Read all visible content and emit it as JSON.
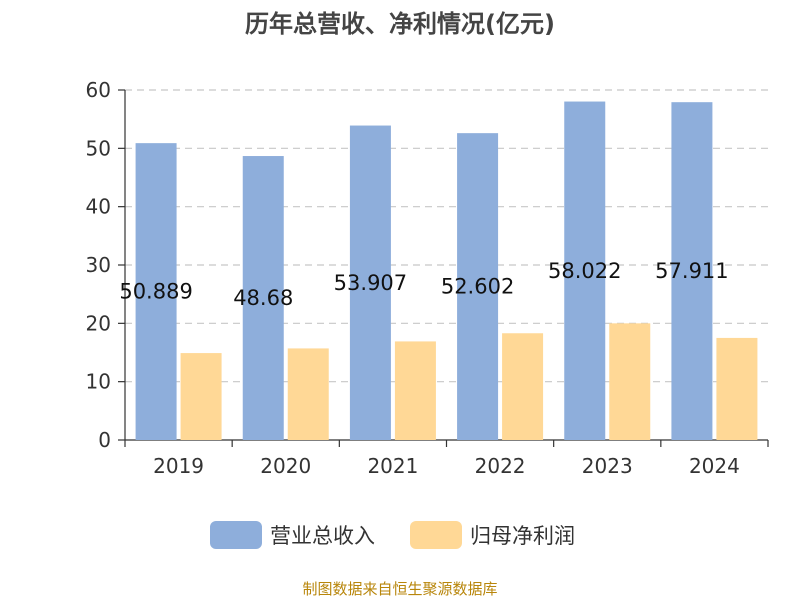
{
  "chart_data": {
    "type": "bar",
    "title": "历年总营收、净利情况(亿元)",
    "categories": [
      "2019",
      "2020",
      "2021",
      "2022",
      "2023",
      "2024"
    ],
    "ylim": [
      0,
      60
    ],
    "yticks": [
      "0",
      "10",
      "20",
      "30",
      "40",
      "50",
      "60"
    ],
    "grid": true,
    "legend_position": "bottom",
    "series": [
      {
        "name": "营业总收入",
        "color": "#8eaedb",
        "values": [
          50.889,
          48.68,
          53.907,
          52.602,
          58.022,
          57.911
        ],
        "labels": [
          "50.889",
          "48.68",
          "53.907",
          "52.602",
          "58.022",
          "57.911"
        ]
      },
      {
        "name": "归母净利润",
        "color": "#ffd896",
        "values": [
          14.9,
          15.7,
          16.9,
          18.3,
          20.0,
          17.5
        ]
      }
    ]
  },
  "source": "制图数据来自恒生聚源数据库"
}
